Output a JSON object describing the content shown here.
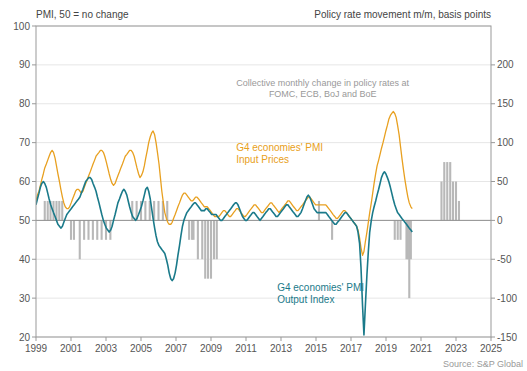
{
  "chart_data": {
    "type": "line",
    "ylabel": "PMI, 50 = no change",
    "y2label": "Policy rate movement m/m, basis points",
    "source": "Source: S&P Global",
    "grid": true,
    "xlim": [
      1999,
      2025
    ],
    "xticks": [
      1999,
      2001,
      2003,
      2005,
      2007,
      2009,
      2011,
      2013,
      2015,
      2017,
      2019,
      2021,
      2023,
      2025
    ],
    "ylim": [
      20,
      100
    ],
    "yticks": [
      20,
      30,
      40,
      50,
      60,
      70,
      80,
      90,
      100
    ],
    "y2lim": [
      -150,
      250
    ],
    "y2ticks": [
      -150,
      -100,
      -50,
      0,
      50,
      100,
      150,
      200
    ],
    "reference_lines": [
      {
        "value": 50,
        "color": "#909090"
      }
    ],
    "x": [
      1999.0,
      1999.08,
      1999.17,
      1999.25,
      1999.33,
      1999.42,
      1999.5,
      1999.59,
      1999.67,
      1999.75,
      1999.84,
      1999.92,
      2000.0,
      2000.09,
      2000.17,
      2000.25,
      2000.34,
      2000.42,
      2000.51,
      2000.59,
      2000.67,
      2000.76,
      2000.84,
      2000.92,
      2001.01,
      2001.09,
      2001.18,
      2001.26,
      2001.34,
      2001.43,
      2001.51,
      2001.59,
      2001.68,
      2001.76,
      2001.84,
      2001.93,
      2002.01,
      2002.1,
      2002.18,
      2002.26,
      2002.35,
      2002.43,
      2002.51,
      2002.6,
      2002.68,
      2002.76,
      2002.85,
      2002.93,
      2003.02,
      2003.1,
      2003.18,
      2003.27,
      2003.35,
      2003.43,
      2003.52,
      2003.6,
      2003.68,
      2003.77,
      2003.85,
      2003.94,
      2004.02,
      2004.1,
      2004.19,
      2004.27,
      2004.35,
      2004.44,
      2004.52,
      2004.61,
      2004.69,
      2004.77,
      2004.86,
      2004.94,
      2005.02,
      2005.11,
      2005.19,
      2005.27,
      2005.36,
      2005.44,
      2005.53,
      2005.61,
      2005.69,
      2005.78,
      2005.86,
      2005.94,
      2006.03,
      2006.11,
      2006.19,
      2006.28,
      2006.36,
      2006.45,
      2006.53,
      2006.61,
      2006.7,
      2006.78,
      2006.86,
      2006.95,
      2007.03,
      2007.11,
      2007.2,
      2007.28,
      2007.37,
      2007.45,
      2007.53,
      2007.62,
      2007.7,
      2007.78,
      2007.87,
      2007.95,
      2008.04,
      2008.12,
      2008.2,
      2008.29,
      2008.37,
      2008.45,
      2008.54,
      2008.62,
      2008.7,
      2008.79,
      2008.87,
      2008.96,
      2009.04,
      2009.12,
      2009.21,
      2009.29,
      2009.37,
      2009.46,
      2009.54,
      2009.62,
      2009.71,
      2009.79,
      2009.88,
      2009.96,
      2010.04,
      2010.13,
      2010.21,
      2010.29,
      2010.38,
      2010.46,
      2010.54,
      2010.63,
      2010.71,
      2010.8,
      2010.88,
      2010.96,
      2011.05,
      2011.13,
      2011.21,
      2011.3,
      2011.38,
      2011.46,
      2011.55,
      2011.63,
      2011.72,
      2011.8,
      2011.88,
      2011.97,
      2012.05,
      2012.13,
      2012.22,
      2012.3,
      2012.39,
      2012.47,
      2012.55,
      2012.64,
      2012.72,
      2012.8,
      2012.89,
      2012.97,
      2013.05,
      2013.14,
      2013.22,
      2013.31,
      2013.39,
      2013.47,
      2013.56,
      2013.64,
      2013.72,
      2013.81,
      2013.89,
      2013.97,
      2014.06,
      2014.14,
      2014.23,
      2014.31,
      2014.39,
      2014.48,
      2014.56,
      2014.64,
      2014.73,
      2014.81,
      2014.89,
      2014.98,
      2015.06,
      2015.15,
      2015.23,
      2015.31,
      2015.4,
      2015.48,
      2015.56,
      2015.65,
      2015.73,
      2015.82,
      2015.9,
      2015.98,
      2016.07,
      2016.15,
      2016.23,
      2016.32,
      2016.4,
      2016.48,
      2016.57,
      2016.65,
      2016.74,
      2016.82,
      2016.9,
      2016.99,
      2017.07,
      2017.15,
      2017.24,
      2017.32,
      2017.4,
      2017.49,
      2017.57,
      2017.66,
      2017.74,
      2017.82,
      2017.91,
      2017.99,
      2018.07,
      2018.16,
      2018.24,
      2018.32,
      2018.41,
      2018.49,
      2018.58,
      2018.66,
      2018.74,
      2018.83,
      2018.91,
      2018.99,
      2019.08,
      2019.16,
      2019.25,
      2019.33,
      2019.41,
      2019.5,
      2019.58,
      2019.66,
      2019.75,
      2019.83,
      2019.91,
      2020.0,
      2020.08,
      2020.17,
      2020.25,
      2020.33,
      2020.42,
      2020.5
    ],
    "series": [
      {
        "name": "Collective monthly change in policy rates at\nFOMC, ECB, BoJ and BoE",
        "type": "bar",
        "axis": "y2",
        "color": "#b8b8b8",
        "x": [
          1999.5,
          1999.67,
          1999.83,
          2000.0,
          2000.17,
          2000.33,
          2000.5,
          2001.0,
          2001.17,
          2001.5,
          2001.75,
          2002.0,
          2002.25,
          2002.5,
          2002.75,
          2003.0,
          2003.25,
          2004.5,
          2004.75,
          2005.0,
          2005.25,
          2005.5,
          2005.75,
          2006.0,
          2006.25,
          2006.5,
          2007.75,
          2007.92,
          2008.0,
          2008.25,
          2008.5,
          2008.67,
          2008.83,
          2009.0,
          2009.17,
          2009.33,
          2015.17,
          2015.92,
          2019.5,
          2019.67,
          2019.83,
          2020.17,
          2020.25,
          2020.33,
          2020.42,
          2022.17,
          2022.33,
          2022.5,
          2022.67,
          2022.83,
          2023.0,
          2023.17
        ],
        "values": [
          25,
          25,
          25,
          25,
          25,
          25,
          25,
          -25,
          -25,
          -50,
          -25,
          -25,
          -25,
          -25,
          -25,
          -25,
          -25,
          25,
          25,
          25,
          25,
          25,
          25,
          25,
          25,
          25,
          -25,
          -25,
          -25,
          -50,
          -50,
          -75,
          -75,
          -75,
          -50,
          -50,
          25,
          -25,
          -25,
          -25,
          -25,
          -50,
          -50,
          -100,
          -50,
          50,
          75,
          75,
          75,
          50,
          50,
          25
        ]
      },
      {
        "name": "G4 economies' PMI\nInput Prices",
        "type": "line",
        "color": "#e8a020",
        "values": [
          55.0,
          56.5,
          57.5,
          59.0,
          60.5,
          62.0,
          63.5,
          64.5,
          65.5,
          66.5,
          67.5,
          68.0,
          67.5,
          66.0,
          64.0,
          62.0,
          60.0,
          58.0,
          56.0,
          54.5,
          53.5,
          53.0,
          53.0,
          53.5,
          54.5,
          55.5,
          56.5,
          57.5,
          58.0,
          58.0,
          57.5,
          57.0,
          57.5,
          58.5,
          59.5,
          60.5,
          61.5,
          62.5,
          63.5,
          64.5,
          65.5,
          66.5,
          67.0,
          67.5,
          68.0,
          68.0,
          67.5,
          66.5,
          65.0,
          63.5,
          62.0,
          60.5,
          59.5,
          59.0,
          59.5,
          60.5,
          61.5,
          62.5,
          63.5,
          64.5,
          65.5,
          66.5,
          67.0,
          67.5,
          68.0,
          68.0,
          67.5,
          66.5,
          65.0,
          63.5,
          62.0,
          61.0,
          61.5,
          62.5,
          64.0,
          66.0,
          68.0,
          70.0,
          71.5,
          72.5,
          73.0,
          72.0,
          70.0,
          67.5,
          64.5,
          61.0,
          57.5,
          54.5,
          52.0,
          50.5,
          49.5,
          49.0,
          49.0,
          49.5,
          50.5,
          51.5,
          52.5,
          53.5,
          54.5,
          55.5,
          56.5,
          57.0,
          57.0,
          56.5,
          56.0,
          55.5,
          55.0,
          55.0,
          55.5,
          56.0,
          56.0,
          55.5,
          55.0,
          54.5,
          54.0,
          53.5,
          53.5,
          53.5,
          53.0,
          52.5,
          52.0,
          51.5,
          51.0,
          51.0,
          51.0,
          51.0,
          51.5,
          52.0,
          52.5,
          52.5,
          52.0,
          51.5,
          51.0,
          51.0,
          51.5,
          52.0,
          52.5,
          53.0,
          53.0,
          52.5,
          52.0,
          51.5,
          51.0,
          51.0,
          51.5,
          52.0,
          52.5,
          53.0,
          53.5,
          54.0,
          54.0,
          53.5,
          53.0,
          52.5,
          52.0,
          52.0,
          52.5,
          53.0,
          53.5,
          54.0,
          54.5,
          54.5,
          54.0,
          53.5,
          53.0,
          52.5,
          52.0,
          52.5,
          53.0,
          53.5,
          54.0,
          54.5,
          55.0,
          55.0,
          54.5,
          54.0,
          53.5,
          53.0,
          52.5,
          52.5,
          53.0,
          53.5,
          54.0,
          54.5,
          55.0,
          55.5,
          56.0,
          56.0,
          55.5,
          55.0,
          54.5,
          54.0,
          54.0,
          54.0,
          54.0,
          54.0,
          54.0,
          54.0,
          54.0,
          53.5,
          53.0,
          52.5,
          52.0,
          51.5,
          51.0,
          50.5,
          50.5,
          51.0,
          51.5,
          52.0,
          52.5,
          52.5,
          52.0,
          51.5,
          51.0,
          50.5,
          50.0,
          49.5,
          49.0,
          48.5,
          47.5,
          45.5,
          43.0,
          41.0,
          42.0,
          44.5,
          47.0,
          49.5,
          52.0,
          54.5,
          57.0,
          59.5,
          62.0,
          64.0,
          65.5,
          67.0,
          68.5,
          70.0,
          71.5,
          73.0,
          74.5,
          76.0,
          77.0,
          77.5,
          78.0,
          77.5,
          76.5,
          74.5,
          72.0,
          69.0,
          66.0,
          63.0,
          60.5,
          58.0,
          56.0,
          54.5,
          53.5,
          53.0
        ]
      },
      {
        "name": "G4 economies' PMI\nOutput Index",
        "type": "line",
        "color": "#1a7a8a",
        "values": [
          54.0,
          55.5,
          57.0,
          58.5,
          59.5,
          60.0,
          59.5,
          58.5,
          57.0,
          55.5,
          54.0,
          53.0,
          52.0,
          51.0,
          50.0,
          49.0,
          48.5,
          48.0,
          48.5,
          49.5,
          50.5,
          51.5,
          52.0,
          52.5,
          53.0,
          53.5,
          54.0,
          54.5,
          55.0,
          55.5,
          56.0,
          57.0,
          58.0,
          59.0,
          60.0,
          60.5,
          61.0,
          61.0,
          60.5,
          59.5,
          58.5,
          57.5,
          56.0,
          54.5,
          53.0,
          51.5,
          50.0,
          49.0,
          48.0,
          47.5,
          47.0,
          47.5,
          48.5,
          50.0,
          51.5,
          53.0,
          54.5,
          55.5,
          56.5,
          57.5,
          58.0,
          57.5,
          56.5,
          55.0,
          53.5,
          52.0,
          51.0,
          50.5,
          50.0,
          50.5,
          51.5,
          52.5,
          53.5,
          55.0,
          56.5,
          58.0,
          58.5,
          57.5,
          55.5,
          53.0,
          50.5,
          48.0,
          46.0,
          44.5,
          43.5,
          43.0,
          42.5,
          42.0,
          41.5,
          40.0,
          38.5,
          36.5,
          35.0,
          34.5,
          35.0,
          36.5,
          38.5,
          41.0,
          43.5,
          46.0,
          48.5,
          50.0,
          51.0,
          52.0,
          52.5,
          53.0,
          53.5,
          54.0,
          54.5,
          54.5,
          54.0,
          53.5,
          53.0,
          52.5,
          52.5,
          52.5,
          53.0,
          53.0,
          52.5,
          52.0,
          51.5,
          51.5,
          51.5,
          51.5,
          51.0,
          50.5,
          50.0,
          50.0,
          50.5,
          51.0,
          51.5,
          52.0,
          52.5,
          53.0,
          53.5,
          54.0,
          54.5,
          54.5,
          54.0,
          53.0,
          52.0,
          51.0,
          50.5,
          50.0,
          50.0,
          50.5,
          51.0,
          51.5,
          52.0,
          52.0,
          51.5,
          51.0,
          50.5,
          50.0,
          50.5,
          51.0,
          51.5,
          52.0,
          52.5,
          53.0,
          53.0,
          52.5,
          52.0,
          51.5,
          51.0,
          51.0,
          51.5,
          52.0,
          52.5,
          53.0,
          53.5,
          54.0,
          54.0,
          53.5,
          53.0,
          52.5,
          52.0,
          51.5,
          51.0,
          51.0,
          51.5,
          52.0,
          53.0,
          54.0,
          55.0,
          56.0,
          56.5,
          56.0,
          55.0,
          54.0,
          53.0,
          52.5,
          52.0,
          52.0,
          52.0,
          52.0,
          52.0,
          52.0,
          52.0,
          51.5,
          51.0,
          50.5,
          50.0,
          49.5,
          49.0,
          49.0,
          49.5,
          50.0,
          50.5,
          51.0,
          51.5,
          52.0,
          52.0,
          51.5,
          51.0,
          50.5,
          50.0,
          49.5,
          49.0,
          48.5,
          47.0,
          44.0,
          38.0,
          28.0,
          20.5,
          28.0,
          36.0,
          42.0,
          47.0,
          50.0,
          52.0,
          53.5,
          55.0,
          56.5,
          58.0,
          59.5,
          61.0,
          62.0,
          62.5,
          62.0,
          61.0,
          60.0,
          58.5,
          57.0,
          55.5,
          54.0,
          53.0,
          52.0,
          51.5,
          51.0,
          50.5,
          50.0,
          49.5,
          49.0,
          48.5,
          48.0,
          47.5,
          47.0
        ]
      }
    ]
  }
}
